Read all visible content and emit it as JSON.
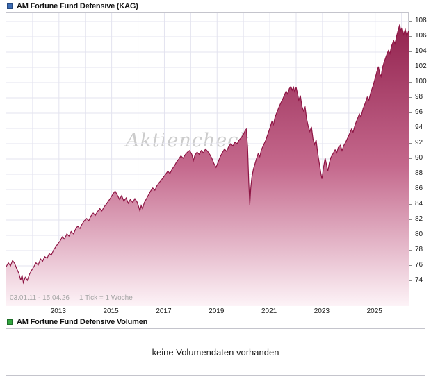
{
  "watermark": "Aktiencheck",
  "chart_data": {
    "type": "area",
    "title": "AM Fortune Fund Defensive (KAG)",
    "period_label": "03.01.11 - 15.04.26",
    "tick_info": "1 Tick = 1 Woche",
    "x_range": [
      2011.0,
      2026.3
    ],
    "ylim": [
      70.7,
      109.1
    ],
    "y_ticks": [
      74,
      76,
      78,
      80,
      82,
      84,
      86,
      88,
      90,
      92,
      94,
      96,
      98,
      100,
      102,
      104,
      106,
      108
    ],
    "x_tick_years": [
      2013,
      2015,
      2017,
      2019,
      2021,
      2023,
      2025
    ],
    "x_tick_labels": [
      "2013",
      "2015",
      "2017",
      "2019",
      "2021",
      "2023",
      "2025"
    ],
    "grid_years": [
      2012,
      2013,
      2014,
      2015,
      2016,
      2017,
      2018,
      2019,
      2020,
      2021,
      2022,
      2023,
      2024,
      2025,
      2026
    ],
    "grid": true,
    "legend_position": "none",
    "line_color": "#8e1544",
    "fill_gradient": [
      "#93234f",
      "#c4688c",
      "#fdf3f7"
    ],
    "grid_color": "#e3e3ef",
    "points": [
      [
        2011.0,
        75.9
      ],
      [
        2011.08,
        76.4
      ],
      [
        2011.16,
        76.0
      ],
      [
        2011.24,
        76.7
      ],
      [
        2011.32,
        76.3
      ],
      [
        2011.4,
        75.6
      ],
      [
        2011.48,
        75.0
      ],
      [
        2011.55,
        74.1
      ],
      [
        2011.6,
        74.8
      ],
      [
        2011.65,
        73.8
      ],
      [
        2011.72,
        74.5
      ],
      [
        2011.8,
        74.1
      ],
      [
        2011.88,
        74.9
      ],
      [
        2011.96,
        75.4
      ],
      [
        2012.05,
        75.9
      ],
      [
        2012.13,
        76.4
      ],
      [
        2012.21,
        76.1
      ],
      [
        2012.3,
        76.9
      ],
      [
        2012.38,
        76.6
      ],
      [
        2012.46,
        77.2
      ],
      [
        2012.55,
        77.0
      ],
      [
        2012.63,
        77.6
      ],
      [
        2012.71,
        77.4
      ],
      [
        2012.8,
        78.1
      ],
      [
        2012.88,
        78.5
      ],
      [
        2012.96,
        78.9
      ],
      [
        2013.05,
        79.3
      ],
      [
        2013.13,
        79.8
      ],
      [
        2013.21,
        79.5
      ],
      [
        2013.3,
        80.2
      ],
      [
        2013.38,
        79.9
      ],
      [
        2013.46,
        80.5
      ],
      [
        2013.55,
        80.2
      ],
      [
        2013.63,
        80.8
      ],
      [
        2013.71,
        81.2
      ],
      [
        2013.8,
        80.9
      ],
      [
        2013.88,
        81.5
      ],
      [
        2013.96,
        81.9
      ],
      [
        2014.05,
        82.2
      ],
      [
        2014.13,
        81.9
      ],
      [
        2014.21,
        82.5
      ],
      [
        2014.3,
        82.9
      ],
      [
        2014.38,
        82.6
      ],
      [
        2014.46,
        83.1
      ],
      [
        2014.55,
        83.5
      ],
      [
        2014.63,
        83.2
      ],
      [
        2014.71,
        83.7
      ],
      [
        2014.8,
        84.1
      ],
      [
        2014.88,
        84.5
      ],
      [
        2014.96,
        84.9
      ],
      [
        2015.05,
        85.4
      ],
      [
        2015.13,
        85.8
      ],
      [
        2015.21,
        85.3
      ],
      [
        2015.3,
        84.7
      ],
      [
        2015.38,
        85.2
      ],
      [
        2015.46,
        84.5
      ],
      [
        2015.55,
        84.9
      ],
      [
        2015.63,
        84.2
      ],
      [
        2015.71,
        84.7
      ],
      [
        2015.8,
        84.3
      ],
      [
        2015.88,
        84.8
      ],
      [
        2015.96,
        84.4
      ],
      [
        2016.02,
        83.8
      ],
      [
        2016.07,
        83.2
      ],
      [
        2016.12,
        83.9
      ],
      [
        2016.17,
        83.5
      ],
      [
        2016.24,
        84.3
      ],
      [
        2016.32,
        84.8
      ],
      [
        2016.4,
        85.3
      ],
      [
        2016.48,
        85.8
      ],
      [
        2016.56,
        86.2
      ],
      [
        2016.64,
        85.9
      ],
      [
        2016.72,
        86.5
      ],
      [
        2016.8,
        86.9
      ],
      [
        2016.88,
        87.2
      ],
      [
        2016.96,
        87.6
      ],
      [
        2017.05,
        88.0
      ],
      [
        2017.13,
        88.4
      ],
      [
        2017.21,
        88.1
      ],
      [
        2017.3,
        88.7
      ],
      [
        2017.38,
        89.1
      ],
      [
        2017.46,
        89.6
      ],
      [
        2017.55,
        90.0
      ],
      [
        2017.63,
        90.4
      ],
      [
        2017.71,
        90.1
      ],
      [
        2017.8,
        90.6
      ],
      [
        2017.88,
        90.9
      ],
      [
        2017.96,
        91.1
      ],
      [
        2018.04,
        90.6
      ],
      [
        2018.1,
        89.8
      ],
      [
        2018.16,
        90.5
      ],
      [
        2018.24,
        90.9
      ],
      [
        2018.32,
        90.6
      ],
      [
        2018.4,
        91.1
      ],
      [
        2018.48,
        90.8
      ],
      [
        2018.56,
        91.3
      ],
      [
        2018.64,
        91.0
      ],
      [
        2018.72,
        90.6
      ],
      [
        2018.8,
        90.1
      ],
      [
        2018.88,
        89.4
      ],
      [
        2018.96,
        88.9
      ],
      [
        2019.04,
        89.6
      ],
      [
        2019.12,
        90.3
      ],
      [
        2019.2,
        90.8
      ],
      [
        2019.28,
        91.3
      ],
      [
        2019.36,
        91.0
      ],
      [
        2019.44,
        91.6
      ],
      [
        2019.52,
        92.0
      ],
      [
        2019.6,
        91.7
      ],
      [
        2019.68,
        92.2
      ],
      [
        2019.76,
        92.0
      ],
      [
        2019.84,
        92.5
      ],
      [
        2019.92,
        92.8
      ],
      [
        2020.0,
        93.2
      ],
      [
        2020.06,
        93.7
      ],
      [
        2020.11,
        93.9
      ],
      [
        2020.16,
        91.5
      ],
      [
        2020.2,
        87.0
      ],
      [
        2020.24,
        84.0
      ],
      [
        2020.28,
        86.3
      ],
      [
        2020.32,
        87.6
      ],
      [
        2020.38,
        88.7
      ],
      [
        2020.44,
        89.4
      ],
      [
        2020.5,
        90.1
      ],
      [
        2020.56,
        90.7
      ],
      [
        2020.62,
        90.3
      ],
      [
        2020.68,
        91.2
      ],
      [
        2020.76,
        91.8
      ],
      [
        2020.84,
        92.4
      ],
      [
        2020.92,
        93.2
      ],
      [
        2021.0,
        94.0
      ],
      [
        2021.08,
        94.9
      ],
      [
        2021.14,
        94.5
      ],
      [
        2021.2,
        95.5
      ],
      [
        2021.28,
        96.2
      ],
      [
        2021.36,
        96.9
      ],
      [
        2021.44,
        97.5
      ],
      [
        2021.5,
        97.9
      ],
      [
        2021.56,
        98.4
      ],
      [
        2021.62,
        98.9
      ],
      [
        2021.68,
        98.5
      ],
      [
        2021.74,
        99.2
      ],
      [
        2021.8,
        99.5
      ],
      [
        2021.85,
        99.0
      ],
      [
        2021.9,
        99.4
      ],
      [
        2021.95,
        98.8
      ],
      [
        2022.0,
        99.4
      ],
      [
        2022.05,
        98.6
      ],
      [
        2022.1,
        97.7
      ],
      [
        2022.16,
        98.3
      ],
      [
        2022.22,
        96.9
      ],
      [
        2022.28,
        96.3
      ],
      [
        2022.34,
        96.8
      ],
      [
        2022.4,
        95.2
      ],
      [
        2022.46,
        94.3
      ],
      [
        2022.52,
        93.6
      ],
      [
        2022.58,
        94.2
      ],
      [
        2022.64,
        92.6
      ],
      [
        2022.7,
        91.9
      ],
      [
        2022.76,
        92.5
      ],
      [
        2022.82,
        90.7
      ],
      [
        2022.88,
        89.4
      ],
      [
        2022.94,
        88.1
      ],
      [
        2022.98,
        87.4
      ],
      [
        2023.04,
        88.9
      ],
      [
        2023.1,
        90.1
      ],
      [
        2023.15,
        89.3
      ],
      [
        2023.2,
        88.4
      ],
      [
        2023.26,
        89.5
      ],
      [
        2023.32,
        90.2
      ],
      [
        2023.4,
        90.7
      ],
      [
        2023.48,
        91.2
      ],
      [
        2023.54,
        90.8
      ],
      [
        2023.6,
        91.5
      ],
      [
        2023.68,
        91.8
      ],
      [
        2023.74,
        91.1
      ],
      [
        2023.8,
        91.7
      ],
      [
        2023.88,
        92.2
      ],
      [
        2023.96,
        92.8
      ],
      [
        2024.04,
        93.4
      ],
      [
        2024.1,
        93.9
      ],
      [
        2024.16,
        93.5
      ],
      [
        2024.24,
        94.5
      ],
      [
        2024.32,
        95.2
      ],
      [
        2024.4,
        95.9
      ],
      [
        2024.46,
        95.5
      ],
      [
        2024.54,
        96.6
      ],
      [
        2024.62,
        97.3
      ],
      [
        2024.7,
        98.1
      ],
      [
        2024.76,
        97.7
      ],
      [
        2024.84,
        98.8
      ],
      [
        2024.92,
        99.6
      ],
      [
        2025.0,
        100.6
      ],
      [
        2025.06,
        101.4
      ],
      [
        2025.12,
        102.1
      ],
      [
        2025.17,
        101.2
      ],
      [
        2025.22,
        100.8
      ],
      [
        2025.28,
        102.0
      ],
      [
        2025.34,
        102.7
      ],
      [
        2025.42,
        103.5
      ],
      [
        2025.5,
        104.2
      ],
      [
        2025.56,
        103.8
      ],
      [
        2025.62,
        104.8
      ],
      [
        2025.7,
        105.5
      ],
      [
        2025.75,
        105.1
      ],
      [
        2025.82,
        106.2
      ],
      [
        2025.88,
        107.0
      ],
      [
        2025.93,
        107.6
      ],
      [
        2025.97,
        106.8
      ],
      [
        2026.02,
        107.2
      ],
      [
        2026.08,
        106.3
      ],
      [
        2026.14,
        107.0
      ],
      [
        2026.2,
        106.1
      ],
      [
        2026.26,
        106.7
      ],
      [
        2026.3,
        106.4
      ]
    ]
  },
  "volume_panel": {
    "title": "AM Fortune Fund Defensive Volumen",
    "message": "keine Volumendaten vorhanden"
  }
}
